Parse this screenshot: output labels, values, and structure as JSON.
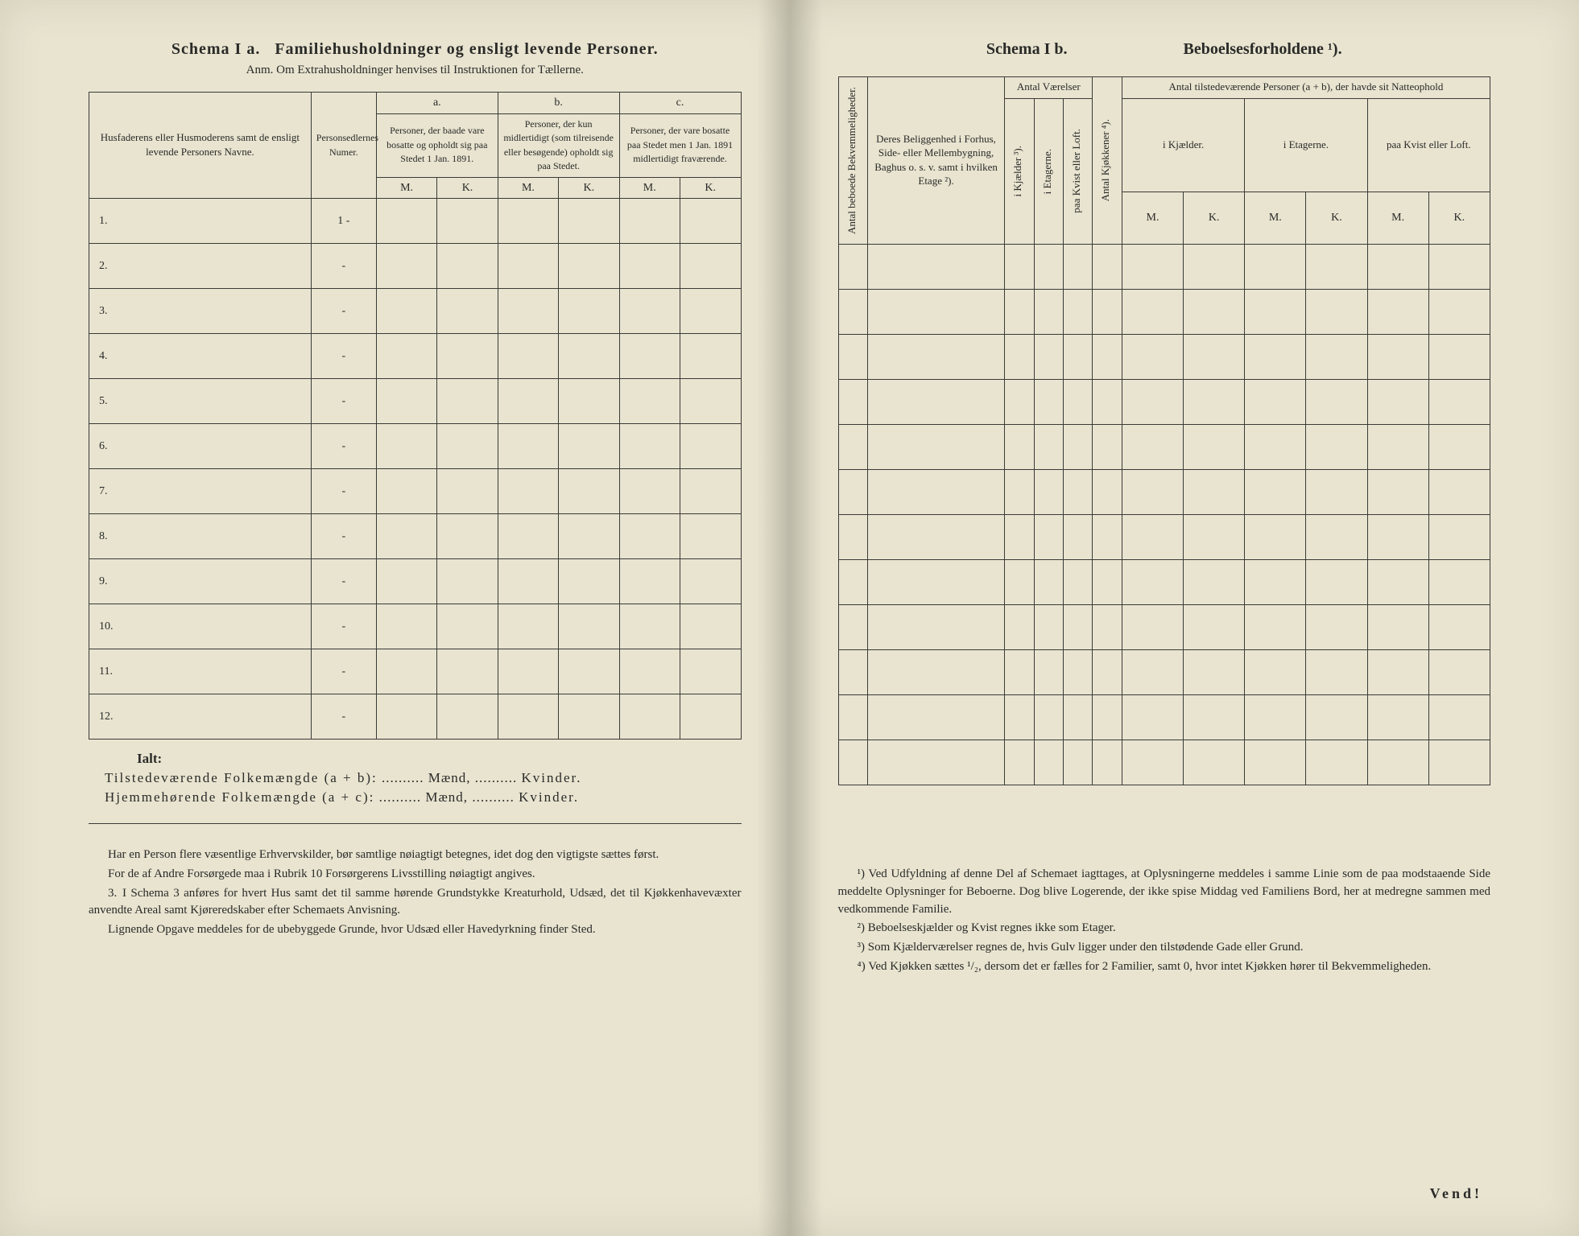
{
  "colors": {
    "paper": "#e8e4d0",
    "ink": "#2a2a28",
    "border": "#3a3a36"
  },
  "left": {
    "schema_label": "Schema I a.",
    "title_main": "Familiehusholdninger og ensligt levende Personer.",
    "subtitle": "Anm.  Om Extrahusholdninger henvises til Instruktionen for Tællerne.",
    "col_names": {
      "names": "Husfaderens eller Husmoderens samt de ensligt levende Personers Navne.",
      "person_num": "Personsedlernes Numer.",
      "a_label": "a.",
      "b_label": "b.",
      "c_label": "c.",
      "a_text": "Personer, der baade vare bosatte og opholdt sig paa Stedet 1 Jan. 1891.",
      "b_text": "Personer, der kun midlertidigt (som tilreisende eller besøgende) opholdt sig paa Stedet.",
      "c_text": "Personer, der vare bosatte paa Stedet men 1 Jan. 1891 midlertidigt fraværende.",
      "m": "M.",
      "k": "K."
    },
    "rows": [
      "1.",
      "2.",
      "3.",
      "4.",
      "5.",
      "6.",
      "7.",
      "8.",
      "9.",
      "10.",
      "11.",
      "12."
    ],
    "first_num": "1 -",
    "dash": "-",
    "ialt_label": "Ialt:",
    "ialt_line1_a": "Tilstedeværende Folkemængde (a + b):",
    "ialt_line2_a": "Hjemmehørende Folkemængde (a + c):",
    "maend": "Mænd,",
    "kvinder": "Kvinder.",
    "dots": "..........",
    "notes": {
      "p1": "Har en Person flere væsentlige Erhvervskilder, bør samtlige nøiagtigt betegnes, idet dog den vigtigste sættes først.",
      "p2": "For de af Andre Forsørgede maa i Rubrik 10 Forsørgerens Livsstilling nøiagtigt angives.",
      "p3_num": "3.",
      "p3": "I Schema 3 anføres for hvert Hus samt det til samme hørende Grundstykke Kreaturhold, Udsæd, det til Kjøkkenhavevæxter anvendte Areal samt Kjøreredskaber efter Schemaets Anvisning.",
      "p4": "Lignende Opgave meddeles for de ubebyggede Grunde, hvor Udsæd eller Havedyrkning finder Sted."
    }
  },
  "right": {
    "schema_label": "Schema I b.",
    "title_main": "Beboelsesforholdene ¹).",
    "cols": {
      "antal_bekv": "Antal beboede Bekvemmeligheder.",
      "beliggenhed": "Deres Beliggenhed i Forhus, Side- eller Mellembygning, Baghus o. s. v. samt i hvilken Etage ²).",
      "antal_vaerelser": "Antal Værelser",
      "i_kjaelder": "i Kjælder ³).",
      "i_etagerne": "i Etagerne.",
      "paa_kvist": "paa Kvist eller Loft.",
      "antal_kjokkener": "Antal Kjøkkener ⁴).",
      "antal_personer": "Antal tilstedeværende Personer (a + b), der havde sit Natteophold",
      "sub_kjaelder": "i Kjælder.",
      "sub_etagerne": "i Etagerne.",
      "sub_kvist": "paa Kvist eller Loft.",
      "m": "M.",
      "k": "K."
    },
    "row_count": 12,
    "footnotes": {
      "f1": "¹) Ved Udfyldning af denne Del af Schemaet iagttages, at Oplysningerne meddeles i samme Linie som de paa modstaaende Side meddelte Oplysninger for Beboerne. Dog blive Logerende, der ikke spise Middag ved Familiens Bord, her at medregne sammen med vedkommende Familie.",
      "f2": "²) Beboelseskjælder og Kvist regnes ikke som Etager.",
      "f3": "³) Som Kjælderværelser regnes de, hvis Gulv ligger under den tilstødende Gade eller Grund.",
      "f4": "⁴) Ved Kjøkken sættes ¹/₂, dersom det er fælles for 2 Familier, samt 0, hvor intet Kjøkken hører til Bekvemmeligheden."
    },
    "vend": "Vend!"
  }
}
